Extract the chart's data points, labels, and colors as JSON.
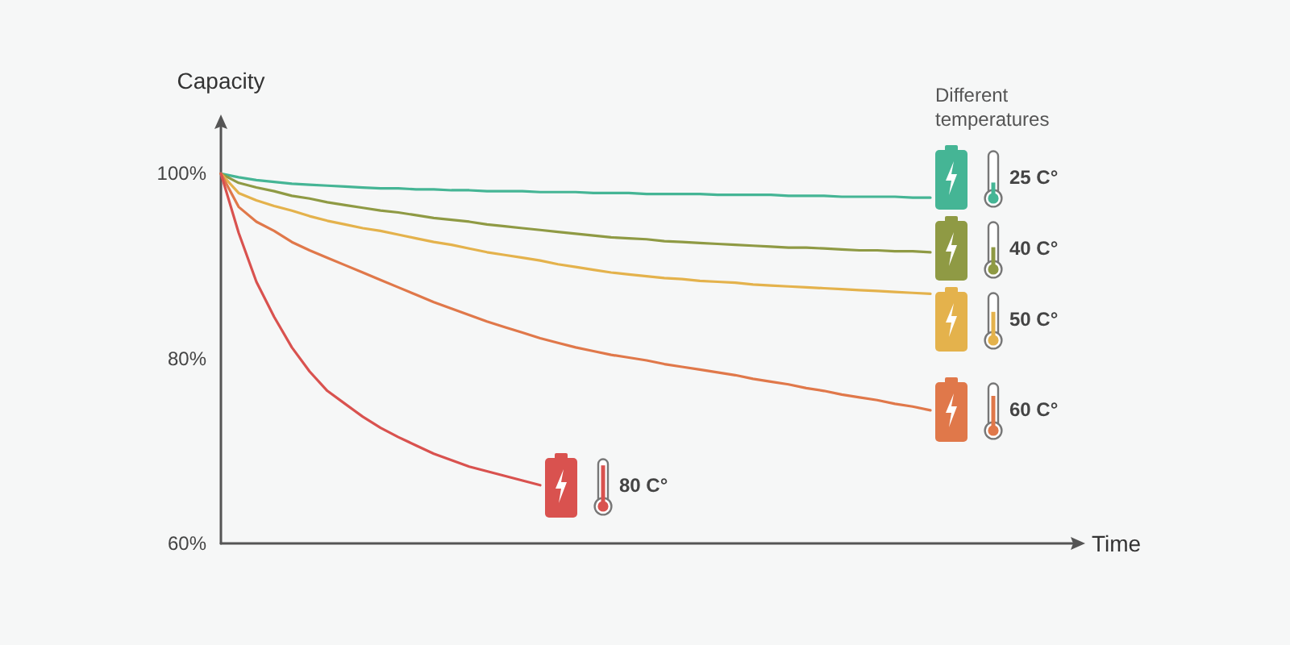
{
  "chart_data": {
    "type": "line",
    "xlabel": "Time",
    "ylabel": "Capacity",
    "annotations": [
      "Different temperatures"
    ],
    "categories": [
      null,
      null,
      null,
      null,
      null,
      null,
      null,
      null,
      null,
      null,
      null,
      null,
      null,
      null,
      null,
      null,
      null,
      null,
      null,
      null,
      null,
      null,
      null,
      null,
      null,
      null,
      null,
      null,
      null,
      null,
      null,
      null,
      null,
      null,
      null,
      null,
      null,
      null,
      null,
      null,
      null,
      null,
      null,
      null,
      null,
      null,
      null,
      null,
      null
    ],
    "ylim": [
      60,
      105
    ],
    "yticks": [
      {
        "value": 60,
        "label": "60%"
      },
      {
        "value": 80,
        "label": "80%"
      },
      {
        "value": 100,
        "label": "100%"
      }
    ],
    "tick_labels": "y",
    "marker": "none",
    "line_style": "solid",
    "legend": "right",
    "series": [
      {
        "name": "25 C°",
        "color": "#45b595",
        "values": [
          100,
          99.6,
          99.3,
          99.1,
          98.9,
          98.8,
          98.7,
          98.6,
          98.5,
          98.4,
          98.4,
          98.3,
          98.3,
          98.2,
          98.2,
          98.1,
          98.1,
          98.1,
          98,
          98,
          98,
          97.9,
          97.9,
          97.9,
          97.8,
          97.8,
          97.8,
          97.8,
          97.7,
          97.7,
          97.7,
          97.7,
          97.6,
          97.6,
          97.6,
          97.5,
          97.5,
          97.5,
          97.5,
          97.4,
          97.4,
          null,
          null,
          null,
          null,
          null,
          null,
          null,
          null
        ]
      },
      {
        "name": "40 C°",
        "color": "#8f9a44",
        "values": [
          100,
          99.0,
          98.5,
          98.1,
          97.6,
          97.3,
          96.9,
          96.6,
          96.3,
          96.0,
          95.8,
          95.5,
          95.2,
          95.0,
          94.8,
          94.5,
          94.3,
          94.1,
          93.9,
          93.7,
          93.5,
          93.3,
          93.1,
          93.0,
          92.9,
          92.7,
          92.6,
          92.5,
          92.4,
          92.3,
          92.2,
          92.1,
          92.0,
          92.0,
          91.9,
          91.8,
          91.7,
          91.7,
          91.6,
          91.6,
          91.5,
          null,
          null,
          null,
          null,
          null,
          null,
          null,
          null
        ]
      },
      {
        "name": "50 C°",
        "color": "#e4b24c",
        "values": [
          100,
          97.9,
          97.1,
          96.5,
          96.0,
          95.4,
          94.9,
          94.5,
          94.1,
          93.8,
          93.4,
          93.0,
          92.6,
          92.3,
          91.9,
          91.5,
          91.2,
          90.9,
          90.6,
          90.2,
          89.9,
          89.6,
          89.3,
          89.1,
          88.9,
          88.7,
          88.6,
          88.4,
          88.3,
          88.2,
          88.0,
          87.9,
          87.8,
          87.7,
          87.6,
          87.5,
          87.4,
          87.3,
          87.2,
          87.1,
          87.0,
          null,
          null,
          null,
          null,
          null,
          null,
          null,
          null
        ]
      },
      {
        "name": "60 C°",
        "color": "#e0784a",
        "values": [
          100,
          96.4,
          94.8,
          93.8,
          92.6,
          91.7,
          90.9,
          90.1,
          89.3,
          88.5,
          87.7,
          86.9,
          86.1,
          85.4,
          84.7,
          84.0,
          83.4,
          82.8,
          82.2,
          81.7,
          81.2,
          80.8,
          80.4,
          80.1,
          79.8,
          79.4,
          79.1,
          78.8,
          78.5,
          78.2,
          77.8,
          77.5,
          77.2,
          76.8,
          76.5,
          76.1,
          75.8,
          75.5,
          75.1,
          74.8,
          74.4,
          null,
          null,
          null,
          null,
          null,
          null,
          null,
          null
        ]
      },
      {
        "name": "80 C°",
        "color": "#d9524f",
        "values": [
          100,
          93.6,
          88.3,
          84.5,
          81.2,
          78.6,
          76.5,
          75.1,
          73.7,
          72.5,
          71.5,
          70.6,
          69.7,
          69.0,
          68.3,
          67.8,
          67.3,
          66.8,
          66.3,
          null,
          null,
          null,
          null,
          null,
          null,
          null,
          null,
          null,
          null,
          null,
          null,
          null,
          null,
          null,
          null,
          null,
          null,
          null,
          null,
          null,
          null,
          null,
          null,
          null,
          null,
          null,
          null,
          null,
          null
        ]
      }
    ]
  }
}
